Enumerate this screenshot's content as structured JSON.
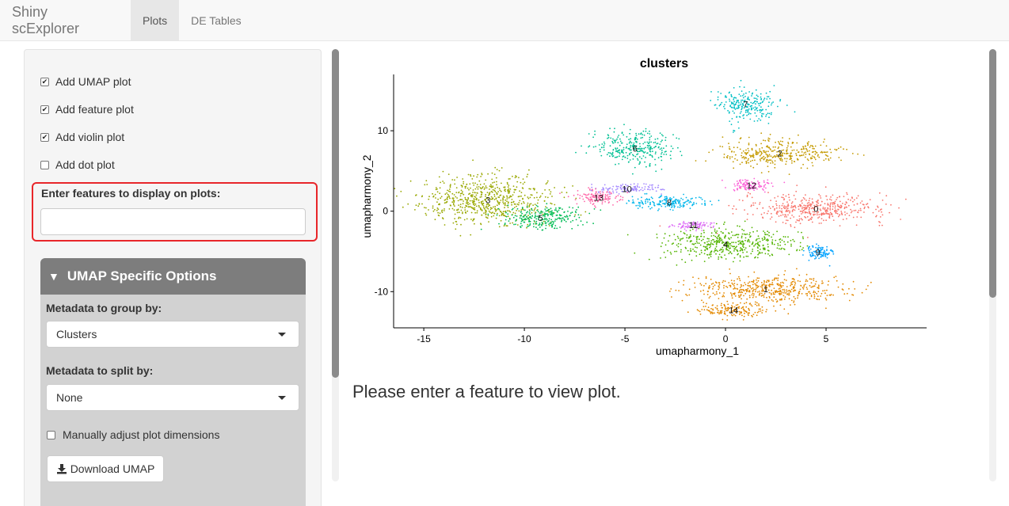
{
  "navbar": {
    "brand": "Shiny scExplorer",
    "tabs": [
      {
        "label": "Plots",
        "active": true
      },
      {
        "label": "DE Tables",
        "active": false
      }
    ]
  },
  "sidebar": {
    "checkboxes": [
      {
        "label": "Add UMAP plot",
        "checked": true
      },
      {
        "label": "Add feature plot",
        "checked": true
      },
      {
        "label": "Add violin plot",
        "checked": true
      },
      {
        "label": "Add dot plot",
        "checked": false
      }
    ],
    "features": {
      "label": "Enter features to display on plots:",
      "value": ""
    },
    "umap": {
      "header": "UMAP Specific Options",
      "group_label": "Metadata to group by:",
      "group_value": "Clusters",
      "split_label": "Metadata to split by:",
      "split_value": "None",
      "adjust_label": "Manually adjust plot dimensions",
      "adjust_checked": false,
      "download_label": "Download UMAP"
    }
  },
  "main": {
    "message": "Please enter a feature to view plot."
  },
  "chart_data": {
    "type": "scatter",
    "title": "clusters",
    "xlabel": "umapharmony_1",
    "ylabel": "umapharmony_2",
    "xlim": [
      -16.5,
      10
    ],
    "ylim": [
      -14.5,
      17
    ],
    "xticks": [
      -15,
      -10,
      -5,
      0,
      5
    ],
    "yticks": [
      -10,
      0,
      10
    ],
    "legend_position": "right",
    "clusters": [
      {
        "name": "0",
        "color": "#F8766D",
        "cx": 4.5,
        "cy": 0.3,
        "rx": 3.3,
        "ry": 1.6
      },
      {
        "name": "1",
        "color": "#E38900",
        "cx": 2.0,
        "cy": -9.7,
        "rx": 3.5,
        "ry": 1.6
      },
      {
        "name": "2",
        "color": "#C49A00",
        "cx": 2.7,
        "cy": 7.2,
        "rx": 2.6,
        "ry": 1.5
      },
      {
        "name": "3",
        "color": "#99A800",
        "cx": -11.8,
        "cy": 1.4,
        "rx": 3.0,
        "ry": 2.7
      },
      {
        "name": "4",
        "color": "#53B400",
        "cx": 0.0,
        "cy": -4.1,
        "rx": 3.0,
        "ry": 1.8
      },
      {
        "name": "5",
        "color": "#00BC56",
        "cx": -9.2,
        "cy": -0.8,
        "rx": 1.8,
        "ry": 1.4
      },
      {
        "name": "6",
        "color": "#00C094",
        "cx": -4.5,
        "cy": 7.8,
        "rx": 1.7,
        "ry": 1.9
      },
      {
        "name": "7",
        "color": "#00BFC4",
        "cx": 1.0,
        "cy": 13.3,
        "rx": 1.3,
        "ry": 1.8
      },
      {
        "name": "8",
        "color": "#00B6EB",
        "cx": -2.8,
        "cy": 1.1,
        "rx": 2.0,
        "ry": 0.8
      },
      {
        "name": "9",
        "color": "#06A4FF",
        "cx": 4.6,
        "cy": -5.1,
        "rx": 0.6,
        "ry": 0.8
      },
      {
        "name": "10",
        "color": "#A58AFF",
        "cx": -4.9,
        "cy": 2.8,
        "rx": 1.5,
        "ry": 0.5
      },
      {
        "name": "11",
        "color": "#DF70F8",
        "cx": -1.6,
        "cy": -1.7,
        "rx": 0.9,
        "ry": 0.5
      },
      {
        "name": "12",
        "color": "#FB61D7",
        "cx": 1.3,
        "cy": 3.2,
        "rx": 1.0,
        "ry": 0.6
      },
      {
        "name": "13",
        "color": "#FF66A8",
        "cx": -6.3,
        "cy": 1.7,
        "rx": 1.1,
        "ry": 0.8
      },
      {
        "name": "14",
        "color": "#E38900",
        "cx": 0.4,
        "cy": -12.3,
        "rx": 1.6,
        "ry": 0.7
      }
    ]
  }
}
